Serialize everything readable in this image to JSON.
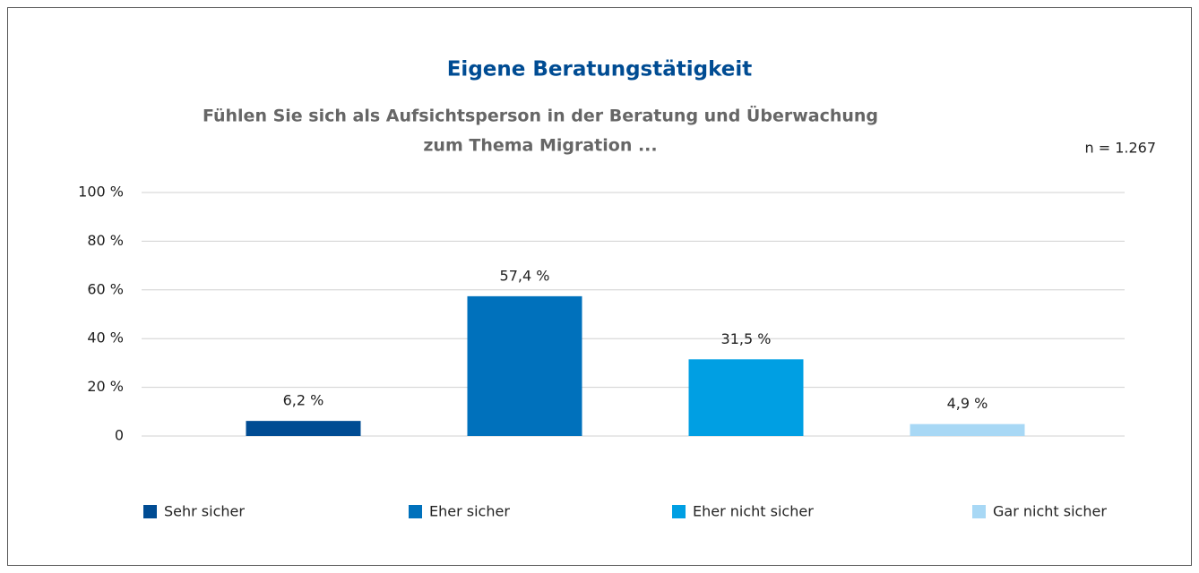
{
  "chart_data": {
    "type": "bar",
    "title": "Eigene Beratungstätigkeit",
    "subtitle": [
      "Fühlen Sie sich als Aufsichtsperson in der Beratung und Überwachung",
      "zum Thema Migration ..."
    ],
    "annotation": "n = 1.267",
    "categories": [
      "Sehr sicher",
      "Eher sicher",
      "Eher nicht sicher",
      "Gar nicht sicher"
    ],
    "values": [
      6.2,
      57.4,
      31.5,
      4.9
    ],
    "value_labels": [
      "6,2 %",
      "57,4 %",
      "31,5 %",
      "4,9 %"
    ],
    "colors": [
      "#004c93",
      "#0071bc",
      "#009fe3",
      "#a8d8f5"
    ],
    "ylim": [
      0,
      100
    ],
    "yticks": [
      0,
      {
        "value": 20,
        "label": "20 %"
      },
      {
        "value": 40,
        "label": "40 %"
      },
      {
        "value": 60,
        "label": "60 %"
      },
      {
        "value": 80,
        "label": "80 %"
      },
      {
        "value": 100,
        "label": "100 %"
      }
    ],
    "grid": true,
    "legend": "bottom"
  }
}
